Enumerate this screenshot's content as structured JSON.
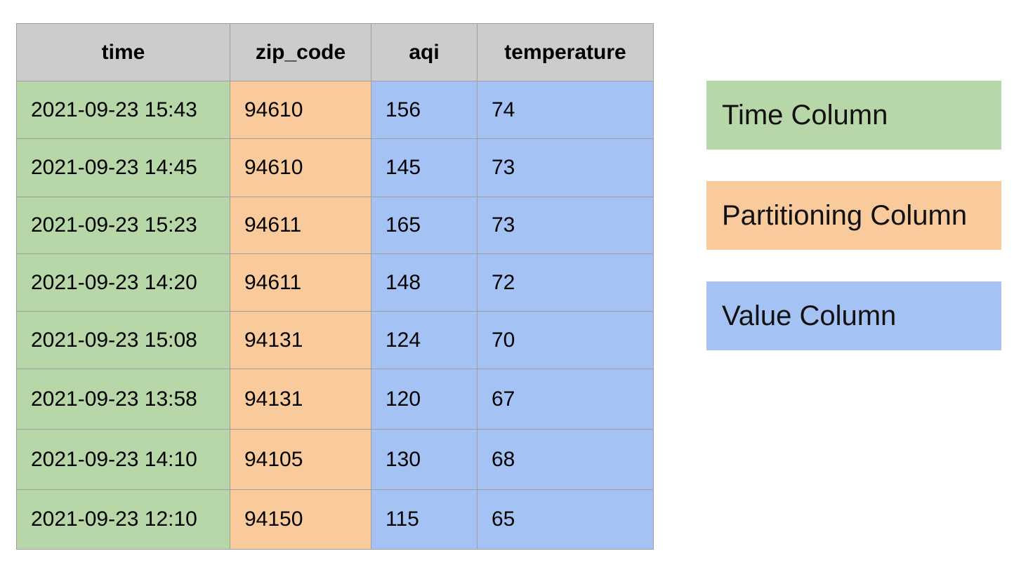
{
  "table": {
    "columns": [
      "time",
      "zip_code",
      "aqi",
      "temperature"
    ],
    "rows": [
      [
        "2021-09-23 15:43",
        "94610",
        "156",
        "74"
      ],
      [
        "2021-09-23 14:45",
        "94610",
        "145",
        "73"
      ],
      [
        "2021-09-23 15:23",
        "94611",
        "165",
        "73"
      ],
      [
        "2021-09-23 14:20",
        "94611",
        "148",
        "72"
      ],
      [
        "2021-09-23 15:08",
        "94131",
        "124",
        "70"
      ],
      [
        "2021-09-23 13:58",
        "94131",
        "120",
        "67"
      ],
      [
        "2021-09-23 14:10",
        "94105",
        "130",
        "68"
      ],
      [
        "2021-09-23 12:10",
        "94150",
        "115",
        "65"
      ]
    ]
  },
  "legend": [
    {
      "label": "Time Column"
    },
    {
      "label": "Partitioning Column"
    },
    {
      "label": "Value Column"
    }
  ]
}
